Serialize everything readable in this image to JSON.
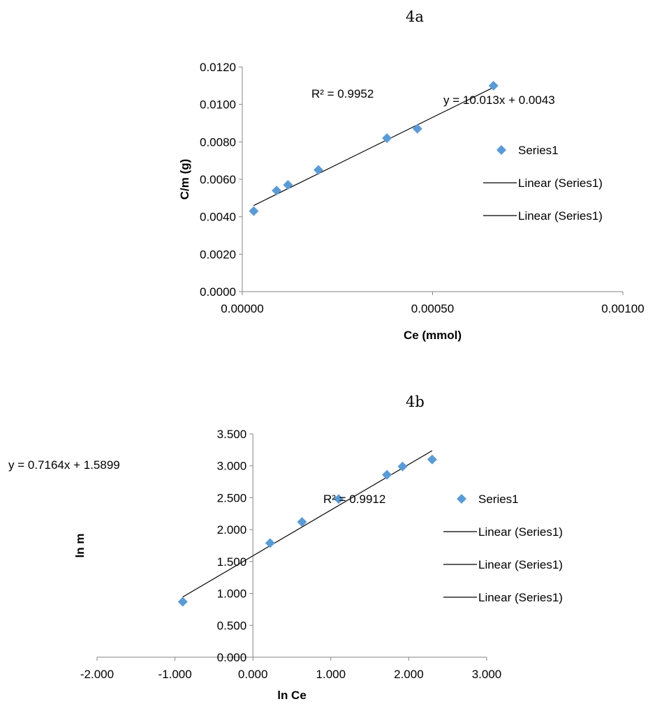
{
  "figures": {
    "a_label": "4a",
    "b_label": "4b"
  },
  "chart_data": [
    {
      "type": "scatter",
      "title": "",
      "xlabel": "Ce (mmol)",
      "ylabel": "C/m (g)",
      "xlim": [
        0.0,
        0.001
      ],
      "ylim": [
        0.0,
        0.012
      ],
      "x_ticks": [
        "0.00000",
        "0.00050",
        "0.00100"
      ],
      "y_ticks": [
        "0.0000",
        "0.0020",
        "0.0040",
        "0.0060",
        "0.0080",
        "0.0100",
        "0.0120"
      ],
      "grid": false,
      "legend_position": "right",
      "legend": [
        "Series1",
        "Linear (Series1)",
        "Linear (Series1)"
      ],
      "series": [
        {
          "name": "Series1",
          "marker_color": "#5b9bd5",
          "x": [
            3e-05,
            9e-05,
            0.00012,
            0.0002,
            0.00038,
            0.00046,
            0.00066
          ],
          "y": [
            0.0043,
            0.0054,
            0.0057,
            0.0065,
            0.0082,
            0.0087,
            0.011
          ]
        }
      ],
      "trendline": {
        "slope": 10.013,
        "intercept": 0.0043,
        "x_range": [
          3e-05,
          0.00066
        ],
        "color": "#000000"
      },
      "annotations": {
        "equation": "y = 10.013x + 0.0043",
        "r2": "R² = 0.9952"
      }
    },
    {
      "type": "scatter",
      "title": "",
      "xlabel": "ln Ce",
      "ylabel": "ln m",
      "xlim": [
        -2.0,
        3.0
      ],
      "ylim": [
        0.0,
        3.5
      ],
      "x_ticks": [
        "-2.000",
        "-1.000",
        "0.000",
        "1.000",
        "2.000",
        "3.000"
      ],
      "y_ticks": [
        "0.000",
        "0.500",
        "1.000",
        "1.500",
        "2.000",
        "2.500",
        "3.000",
        "3.500"
      ],
      "grid": false,
      "legend_position": "right",
      "legend": [
        "Series1",
        "Linear (Series1)",
        "Linear (Series1)",
        "Linear (Series1)"
      ],
      "series": [
        {
          "name": "Series1",
          "marker_color": "#5b9bd5",
          "x": [
            -0.9,
            0.22,
            0.63,
            1.1,
            1.72,
            1.92,
            2.3
          ],
          "y": [
            0.87,
            1.79,
            2.12,
            2.48,
            2.86,
            2.99,
            3.1
          ]
        }
      ],
      "trendline": {
        "slope": 0.7164,
        "intercept": 1.5899,
        "x_range": [
          -0.9,
          2.3
        ],
        "color": "#000000"
      },
      "annotations": {
        "equation": "y = 0.7164x + 1.5899",
        "r2": "R² = 0.9912"
      }
    }
  ]
}
